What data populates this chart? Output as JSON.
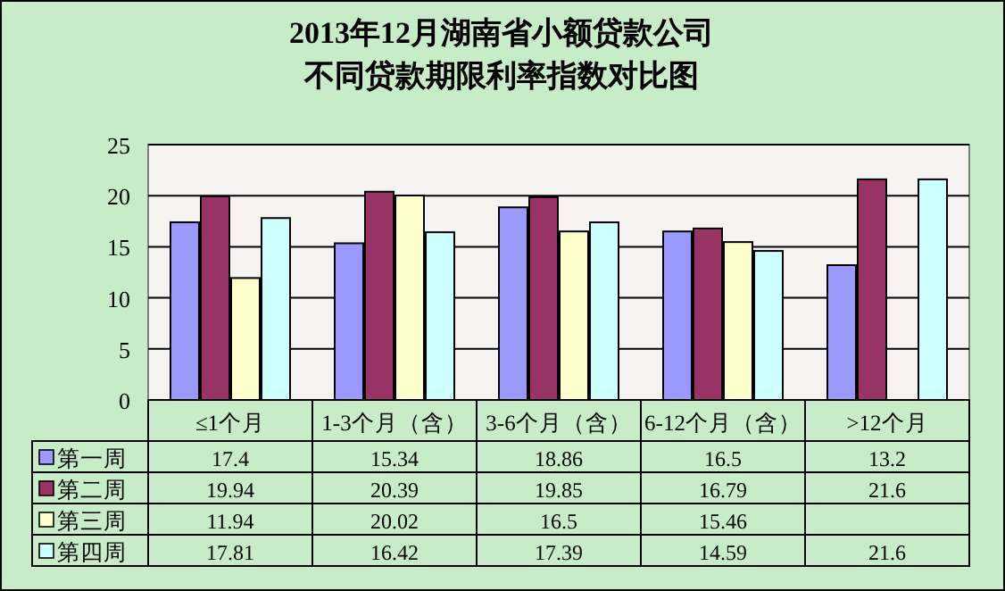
{
  "chart_data": {
    "type": "bar",
    "title": "2013年12月湖南省小额贷款公司不同贷款期限利率指数对比图",
    "categories": [
      "≤1个月",
      "1-3个月（含）",
      "3-6个月（含）",
      "6-12个月（含）",
      ">12个月"
    ],
    "series": [
      {
        "name": "第一周",
        "color": "#9999ff",
        "values": [
          17.4,
          15.34,
          18.86,
          16.5,
          13.2
        ]
      },
      {
        "name": "第二周",
        "color": "#993366",
        "values": [
          19.94,
          20.39,
          19.85,
          16.79,
          21.6
        ]
      },
      {
        "name": "第三周",
        "color": "#ffffcc",
        "values": [
          11.94,
          20.02,
          16.5,
          15.46,
          null
        ]
      },
      {
        "name": "第四周",
        "color": "#ccffff",
        "values": [
          17.81,
          16.42,
          17.39,
          14.59,
          21.6
        ]
      }
    ],
    "ylim": [
      0,
      25
    ],
    "yticks": [
      0,
      5,
      10,
      15,
      20,
      25
    ],
    "grid": "y",
    "legend": "bottom",
    "data_labels": true
  }
}
